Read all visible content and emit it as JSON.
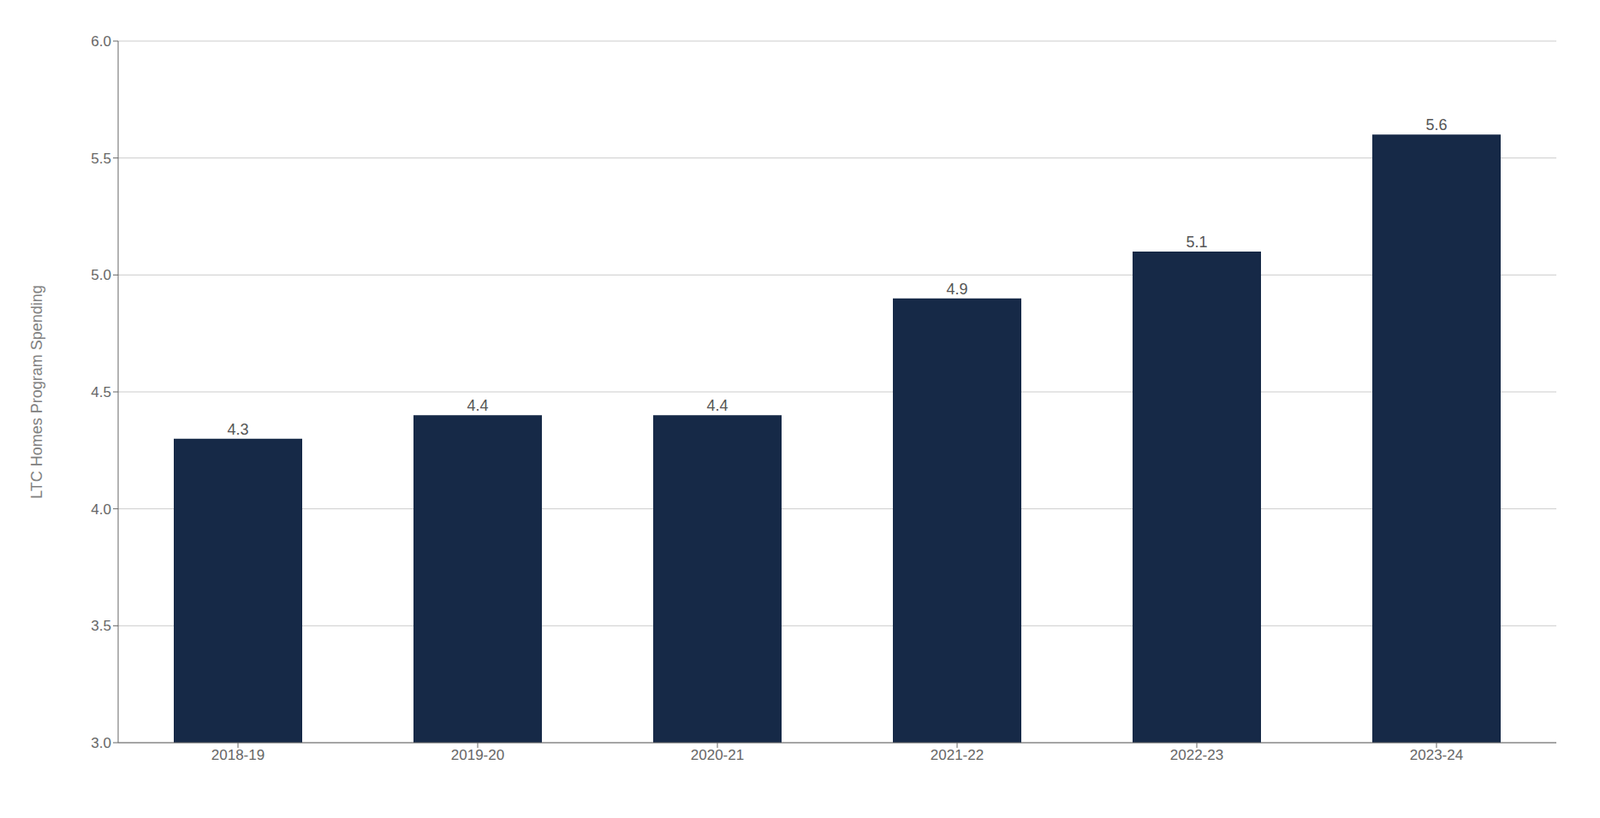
{
  "chart_data": {
    "type": "bar",
    "categories": [
      "2018-19",
      "2019-20",
      "2020-21",
      "2021-22",
      "2022-23",
      "2023-24"
    ],
    "values": [
      4.3,
      4.4,
      4.4,
      4.9,
      5.1,
      5.6
    ],
    "color": "#162947",
    "ylabel": "LTC Homes Program Spending",
    "ylim": [
      3.0,
      6.0
    ],
    "yticks": [
      {
        "value": 3.0,
        "label": "3.0"
      },
      3.5,
      {
        "value": 4.0,
        "label": "4.0"
      },
      4.5,
      {
        "value": 5.0,
        "label": "5.0"
      },
      5.5,
      {
        "value": 6.0,
        "label": "6.0"
      }
    ],
    "grid": true,
    "data_labels": true
  }
}
